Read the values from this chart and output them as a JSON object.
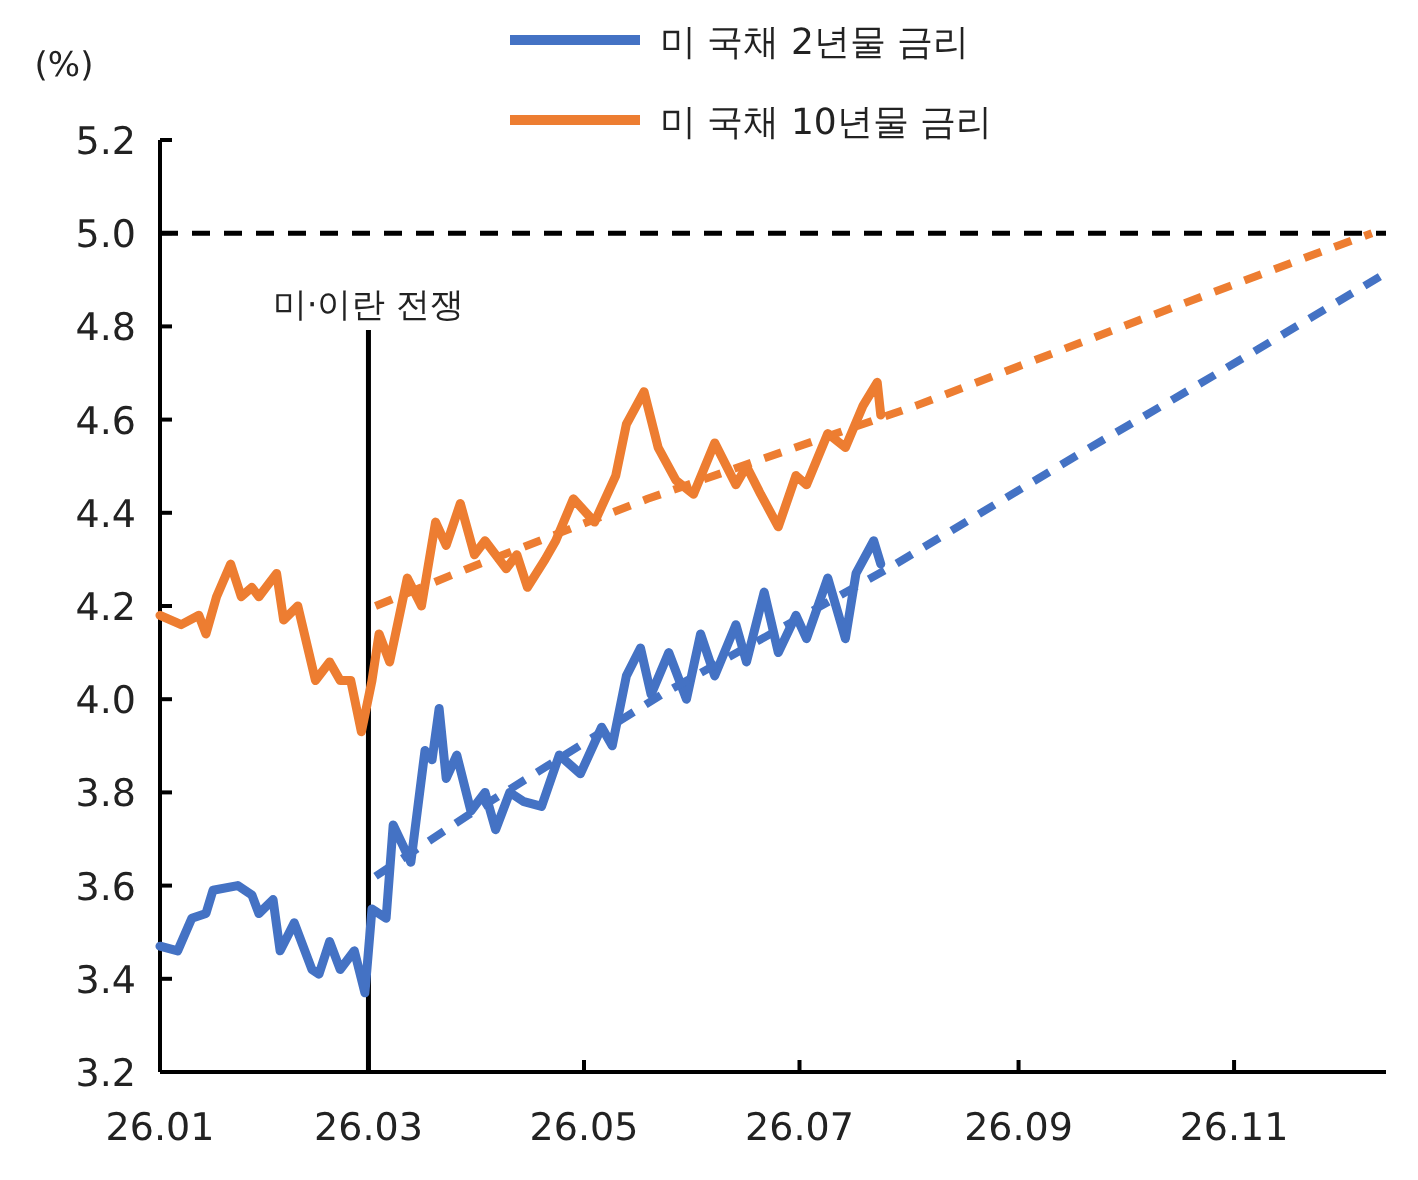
{
  "chart_data": {
    "type": "line",
    "ylabel": "(%)",
    "xlim": [
      "--01-01",
      "--12-14"
    ],
    "xticks": [
      {
        "value": "--01-01",
        "label": "26.01"
      },
      {
        "value": "--03-01",
        "label": "26.03"
      },
      {
        "value": "--05-01",
        "label": "26.05"
      },
      {
        "value": "--07-01",
        "label": "26.07"
      },
      {
        "value": "--09-01",
        "label": "26.09"
      },
      {
        "value": "--11-01",
        "label": "26.11"
      }
    ],
    "ylim": [
      3.2,
      5.2
    ],
    "yticks": [
      {
        "value": 3.2,
        "label": "3.2"
      },
      {
        "value": 3.4,
        "label": "3.4"
      },
      {
        "value": 3.6,
        "label": "3.6"
      },
      {
        "value": 3.8,
        "label": "3.8"
      },
      {
        "value": 4.0,
        "label": "4.0"
      },
      {
        "value": 4.2,
        "label": "4.2"
      },
      {
        "value": 4.4,
        "label": "4.4"
      },
      {
        "value": 4.6,
        "label": "4.6"
      },
      {
        "value": 4.8,
        "label": "4.8"
      },
      {
        "value": 5.0,
        "label": "5.0"
      },
      {
        "value": 5.2,
        "label": "5.2"
      }
    ],
    "grid": false,
    "legend": "top",
    "marker": "none",
    "ref_lines": [
      {
        "axis": "y",
        "value": 5.0,
        "color": "#000000",
        "line_style": "dashed"
      },
      {
        "axis": "x",
        "value": "--03-01",
        "label": "미·이란 전쟁",
        "color": "#000000",
        "line_style": "solid"
      }
    ],
    "series": [
      {
        "name": "미 국채 2년물 금리",
        "color": "#4472c4",
        "line_style": "solid",
        "x": [
          "--01-01",
          "--01-06",
          "--01-10",
          "--01-14",
          "--01-16",
          "--01-23",
          "--01-27",
          "--01-29",
          "--02-02",
          "--02-04",
          "--02-08",
          "--02-13",
          "--02-15",
          "--02-18",
          "--02-21",
          "--02-25",
          "--02-28",
          "--03-01",
          "--03-02",
          "--03-06",
          "--03-08",
          "--03-13",
          "--03-17",
          "--03-19",
          "--03-21",
          "--03-23",
          "--03-26",
          "--03-30",
          "--04-03",
          "--04-06",
          "--04-10",
          "--04-14",
          "--04-19",
          "--04-24",
          "--04-30",
          "--05-06",
          "--05-09",
          "--05-13",
          "--05-17",
          "--05-20",
          "--05-25",
          "--05-30",
          "--06-03",
          "--06-07",
          "--06-13",
          "--06-16",
          "--06-21",
          "--06-25",
          "--06-30",
          "--07-03",
          "--07-09",
          "--07-14",
          "--07-17",
          "--07-22",
          "--07-24"
        ],
        "values": [
          3.47,
          3.46,
          3.53,
          3.54,
          3.59,
          3.6,
          3.58,
          3.54,
          3.57,
          3.46,
          3.52,
          3.42,
          3.41,
          3.48,
          3.42,
          3.46,
          3.37,
          3.46,
          3.55,
          3.53,
          3.73,
          3.65,
          3.89,
          3.87,
          3.98,
          3.83,
          3.88,
          3.76,
          3.8,
          3.72,
          3.8,
          3.78,
          3.77,
          3.88,
          3.84,
          3.94,
          3.9,
          4.05,
          4.11,
          4.01,
          4.1,
          4.0,
          4.14,
          4.05,
          4.16,
          4.08,
          4.23,
          4.1,
          4.18,
          4.13,
          4.26,
          4.13,
          4.27,
          4.34,
          4.29
        ]
      },
      {
        "name": "미 국채 10년물 금리",
        "color": "#ed7d31",
        "line_style": "solid",
        "x": [
          "--01-01",
          "--01-07",
          "--01-12",
          "--01-14",
          "--01-17",
          "--01-21",
          "--01-24",
          "--01-27",
          "--01-29",
          "--02-03",
          "--02-05",
          "--02-09",
          "--02-14",
          "--02-18",
          "--02-21",
          "--02-24",
          "--02-27",
          "--03-02",
          "--03-04",
          "--03-07",
          "--03-12",
          "--03-16",
          "--03-20",
          "--03-23",
          "--03-27",
          "--03-31",
          "--04-03",
          "--04-09",
          "--04-12",
          "--04-15",
          "--04-20",
          "--04-23",
          "--04-28",
          "--05-04",
          "--05-10",
          "--05-13",
          "--05-18",
          "--05-22",
          "--05-27",
          "--06-01",
          "--06-07",
          "--06-13",
          "--06-16",
          "--06-20",
          "--06-25",
          "--06-30",
          "--07-03",
          "--07-09",
          "--07-14",
          "--07-19",
          "--07-23",
          "--07-24"
        ],
        "values": [
          4.18,
          4.16,
          4.18,
          4.14,
          4.22,
          4.29,
          4.22,
          4.24,
          4.22,
          4.27,
          4.17,
          4.2,
          4.04,
          4.08,
          4.04,
          4.04,
          3.93,
          4.04,
          4.14,
          4.08,
          4.26,
          4.2,
          4.38,
          4.33,
          4.42,
          4.31,
          4.34,
          4.28,
          4.31,
          4.24,
          4.3,
          4.34,
          4.43,
          4.38,
          4.48,
          4.59,
          4.66,
          4.54,
          4.47,
          4.44,
          4.55,
          4.46,
          4.5,
          4.44,
          4.37,
          4.48,
          4.46,
          4.57,
          4.54,
          4.63,
          4.68,
          4.61
        ]
      },
      {
        "color": "#4472c4",
        "line_style": "dashed",
        "x": [
          "--03-03",
          "--03-29",
          "--05-23",
          "--07-26",
          "--09-19",
          "--10-23",
          "--12-13"
        ],
        "values": [
          3.62,
          3.75,
          4.01,
          4.28,
          4.53,
          4.68,
          4.91
        ]
      },
      {
        "color": "#ed7d31",
        "line_style": "dashed",
        "x": [
          "--03-03",
          "--03-29",
          "--05-19",
          "--06-26",
          "--08-03",
          "--10-04",
          "--11-22",
          "--12-10"
        ],
        "values": [
          4.2,
          4.28,
          4.43,
          4.53,
          4.63,
          4.81,
          4.95,
          5.0
        ]
      }
    ]
  }
}
